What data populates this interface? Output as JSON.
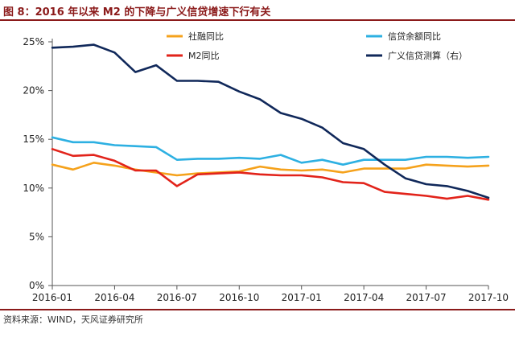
{
  "header": {
    "title": "图 8：2016 年以来 M2 的下降与广义信贷增速下行有关"
  },
  "footer": {
    "source": "资料来源：WIND，天风证券研究所"
  },
  "colors": {
    "shrf": "#f5a21c",
    "loans": "#2db0e2",
    "m2": "#e2231a",
    "credit": "#10285a",
    "rule": "#8b1a1a",
    "axis": "#555555"
  },
  "chart_data": {
    "type": "line",
    "title": "",
    "x": [
      "2016-01",
      "2016-02",
      "2016-03",
      "2016-04",
      "2016-05",
      "2016-06",
      "2016-07",
      "2016-08",
      "2016-09",
      "2016-10",
      "2016-11",
      "2016-12",
      "2017-01",
      "2017-02",
      "2017-03",
      "2017-04",
      "2017-05",
      "2017-06",
      "2017-07",
      "2017-08",
      "2017-09",
      "2017-10"
    ],
    "x_tick_labels": [
      "2016-01",
      "2016-04",
      "2016-07",
      "2016-10",
      "2017-01",
      "2017-04",
      "2017-07",
      "2017-10"
    ],
    "y_tick_labels": [
      "0%",
      "5%",
      "10%",
      "15%",
      "20%",
      "25%"
    ],
    "ylim": [
      0,
      25
    ],
    "yunit": "%",
    "series": [
      {
        "key": "shrf",
        "name": "社融同比",
        "axis": "left",
        "values": [
          12.4,
          11.9,
          12.6,
          12.3,
          11.9,
          11.6,
          11.3,
          11.5,
          11.6,
          11.7,
          12.2,
          11.9,
          11.8,
          11.9,
          11.6,
          12.0,
          12.0,
          12.0,
          12.4,
          12.3,
          12.2,
          12.3
        ]
      },
      {
        "key": "loans",
        "name": "信贷余额同比",
        "axis": "left",
        "values": [
          15.2,
          14.7,
          14.7,
          14.4,
          14.3,
          14.2,
          12.9,
          13.0,
          13.0,
          13.1,
          13.0,
          13.4,
          12.6,
          12.9,
          12.4,
          12.9,
          12.9,
          12.9,
          13.2,
          13.2,
          13.1,
          13.2
        ]
      },
      {
        "key": "m2",
        "name": "M2同比",
        "axis": "left",
        "values": [
          14.0,
          13.3,
          13.4,
          12.8,
          11.8,
          11.8,
          10.2,
          11.4,
          11.5,
          11.6,
          11.4,
          11.3,
          11.3,
          11.1,
          10.6,
          10.5,
          9.6,
          9.4,
          9.2,
          8.9,
          9.2,
          8.8
        ]
      },
      {
        "key": "credit",
        "name": "广义信贷测算（右）",
        "axis": "right",
        "values": [
          24.4,
          24.5,
          24.7,
          23.9,
          21.9,
          22.6,
          21.0,
          21.0,
          20.9,
          19.9,
          19.1,
          17.7,
          17.1,
          16.2,
          14.6,
          14.0,
          12.4,
          11.0,
          10.4,
          10.2,
          9.7,
          9.0
        ]
      }
    ],
    "legend_position": "top-right",
    "grid": false
  }
}
